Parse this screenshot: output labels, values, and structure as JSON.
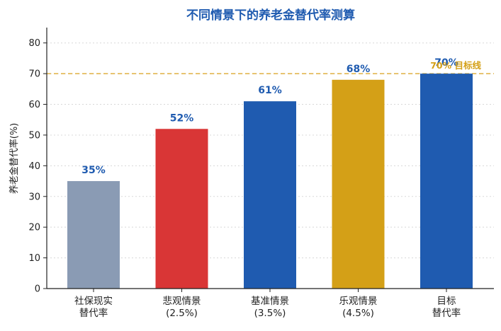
{
  "chart_data": {
    "type": "bar",
    "title": "不同情景下的养老金替代率测算",
    "ylabel": "养老金替代率(%)",
    "xlabel": "",
    "ylim": [
      0,
      85
    ],
    "yticks": [
      0,
      10,
      20,
      30,
      40,
      50,
      60,
      70,
      80
    ],
    "grid": true,
    "categories": [
      [
        "社保现实",
        "替代率"
      ],
      [
        "悲观情景",
        "(2.5%)"
      ],
      [
        "基准情景",
        "(3.5%)"
      ],
      [
        "乐观情景",
        "(4.5%)"
      ],
      [
        "目标",
        "替代率"
      ]
    ],
    "values": [
      35,
      52,
      61,
      68,
      70
    ],
    "data_labels": [
      "35%",
      "52%",
      "61%",
      "68%",
      "70%"
    ],
    "bar_colors": [
      "#8a9bb4",
      "#d93636",
      "#1f5bb0",
      "#d4a017",
      "#1f5bb0"
    ],
    "label_color": "#1f5bb0",
    "title_color": "#1f5bb0",
    "reference_line": {
      "value": 70,
      "label": "70% 目标线",
      "color": "#e0b040"
    }
  }
}
